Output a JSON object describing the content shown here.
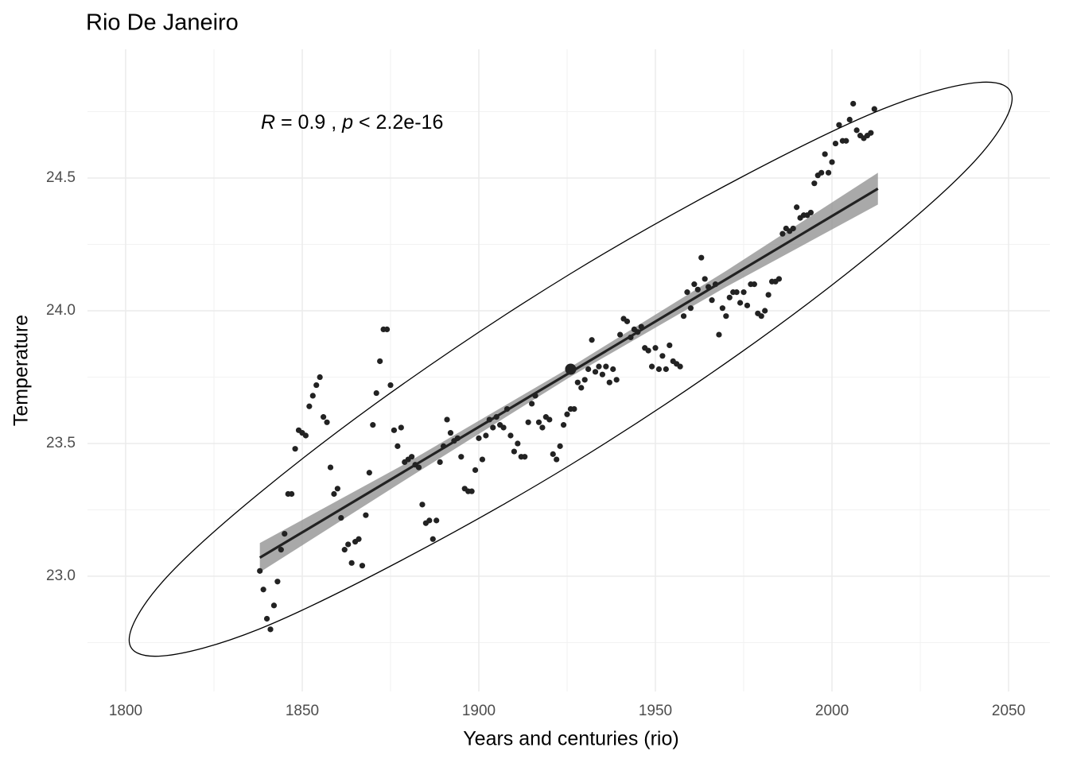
{
  "chart_data": {
    "type": "scatter",
    "title": "Rio De Janeiro",
    "x_label": "Years and centuries (rio)",
    "y_label": "Temperature",
    "annotation": [
      "R",
      " = 0.9 , ",
      "p",
      " < 2.2e-16"
    ],
    "color": "#222222",
    "fit_color": "#222222",
    "band_color": "#8c8c8c",
    "ellipse_color": "#000000",
    "grid": true,
    "xlim": [
      1789.2,
      2061.7
    ],
    "ylim": [
      22.566,
      24.985
    ],
    "xticks": [
      1800,
      1850,
      1900,
      1950,
      2000,
      2050
    ],
    "yticks": [
      {
        "value": 23.0,
        "label": "23.0"
      },
      23.5,
      {
        "value": 24.0,
        "label": "24.0"
      },
      24.5
    ],
    "xminor": [
      1825,
      1875,
      1925,
      1975,
      2025
    ],
    "yminor": [
      22.75,
      23.25,
      23.75,
      24.25,
      24.75
    ],
    "x": [
      1838,
      1839,
      1840,
      1841,
      1842,
      1843,
      1844,
      1845,
      1846,
      1847,
      1848,
      1849,
      1850,
      1851,
      1852,
      1853,
      1854,
      1855,
      1856,
      1857,
      1858,
      1859,
      1860,
      1861,
      1862,
      1863,
      1864,
      1865,
      1866,
      1867,
      1868,
      1869,
      1870,
      1871,
      1872,
      1873,
      1874,
      1875,
      1876,
      1877,
      1878,
      1879,
      1880,
      1881,
      1882,
      1883,
      1884,
      1885,
      1886,
      1887,
      1888,
      1889,
      1890,
      1891,
      1892,
      1893,
      1894,
      1895,
      1896,
      1897,
      1898,
      1899,
      1900,
      1901,
      1902,
      1903,
      1904,
      1905,
      1906,
      1907,
      1908,
      1909,
      1910,
      1911,
      1912,
      1913,
      1914,
      1915,
      1916,
      1917,
      1918,
      1919,
      1920,
      1921,
      1922,
      1923,
      1924,
      1925,
      1926,
      1927,
      1928,
      1929,
      1930,
      1931,
      1932,
      1933,
      1934,
      1935,
      1936,
      1937,
      1938,
      1939,
      1940,
      1941,
      1942,
      1943,
      1944,
      1945,
      1946,
      1947,
      1948,
      1949,
      1950,
      1951,
      1952,
      1953,
      1954,
      1955,
      1956,
      1957,
      1958,
      1959,
      1960,
      1961,
      1962,
      1963,
      1964,
      1965,
      1966,
      1967,
      1968,
      1969,
      1970,
      1971,
      1972,
      1973,
      1974,
      1975,
      1976,
      1977,
      1978,
      1979,
      1980,
      1981,
      1982,
      1983,
      1984,
      1985,
      1986,
      1987,
      1988,
      1989,
      1990,
      1991,
      1992,
      1993,
      1994,
      1995,
      1996,
      1997,
      1998,
      1999,
      2000,
      2001,
      2002,
      2003,
      2004,
      2005,
      2006,
      2007,
      2008,
      2009,
      2010,
      2011,
      2012
    ],
    "values": [
      23.02,
      22.95,
      22.84,
      22.8,
      22.89,
      22.98,
      23.1,
      23.16,
      23.31,
      23.31,
      23.48,
      23.55,
      23.54,
      23.53,
      23.64,
      23.68,
      23.72,
      23.75,
      23.6,
      23.58,
      23.41,
      23.31,
      23.33,
      23.22,
      23.1,
      23.12,
      23.05,
      23.13,
      23.14,
      23.04,
      23.23,
      23.39,
      23.57,
      23.69,
      23.81,
      23.93,
      23.93,
      23.72,
      23.55,
      23.49,
      23.56,
      23.43,
      23.44,
      23.45,
      23.42,
      23.41,
      23.27,
      23.2,
      23.21,
      23.14,
      23.21,
      23.43,
      23.49,
      23.59,
      23.54,
      23.51,
      23.52,
      23.45,
      23.33,
      23.32,
      23.32,
      23.4,
      23.52,
      23.44,
      23.53,
      23.59,
      23.56,
      23.6,
      23.57,
      23.56,
      23.63,
      23.53,
      23.47,
      23.5,
      23.45,
      23.45,
      23.58,
      23.65,
      23.68,
      23.58,
      23.56,
      23.6,
      23.59,
      23.46,
      23.44,
      23.49,
      23.57,
      23.61,
      23.63,
      23.63,
      23.73,
      23.71,
      23.74,
      23.78,
      23.89,
      23.77,
      23.79,
      23.76,
      23.79,
      23.73,
      23.78,
      23.74,
      23.91,
      23.97,
      23.96,
      23.9,
      23.93,
      23.92,
      23.94,
      23.86,
      23.85,
      23.79,
      23.86,
      23.78,
      23.83,
      23.78,
      23.87,
      23.81,
      23.8,
      23.79,
      23.98,
      24.07,
      24.01,
      24.1,
      24.08,
      24.2,
      24.12,
      24.09,
      24.04,
      24.1,
      23.91,
      24.01,
      23.98,
      24.05,
      24.07,
      24.07,
      24.03,
      24.07,
      24.02,
      24.1,
      24.1,
      23.99,
      23.98,
      24.0,
      24.06,
      24.11,
      24.11,
      24.12,
      24.29,
      24.31,
      24.3,
      24.31,
      24.39,
      24.35,
      24.36,
      24.36,
      24.37,
      24.48,
      24.51,
      24.52,
      24.59,
      24.52,
      24.56,
      24.63,
      24.7,
      24.64,
      24.64,
      24.72,
      24.78,
      24.68,
      24.66,
      24.65,
      24.66,
      24.67,
      24.76
    ],
    "fit": {
      "x": [
        1838,
        2013
      ],
      "y": [
        23.07,
        24.46
      ]
    },
    "band": {
      "x": [
        1838,
        1880,
        1926,
        1970,
        2013
      ],
      "lower": [
        23.015,
        23.37,
        23.752,
        24.09,
        24.4
      ],
      "upper": [
        23.125,
        23.43,
        23.788,
        24.15,
        24.52
      ]
    },
    "mean": {
      "x": 1926,
      "y": 23.78
    },
    "ellipse": {
      "x": [
        2051,
        2041.5,
        2014.4,
        1973.9,
        1926,
        1878.1,
        1837.6,
        1810.5,
        1801,
        1810.5,
        1837.6,
        1878.1,
        1926,
        1973.9,
        2014.4,
        2041.5
      ],
      "y": [
        24.8,
        24.86,
        24.76,
        24.5,
        24.14,
        23.72,
        23.31,
        22.98,
        22.76,
        22.7,
        22.8,
        23.06,
        23.42,
        23.84,
        24.25,
        24.58
      ]
    }
  }
}
